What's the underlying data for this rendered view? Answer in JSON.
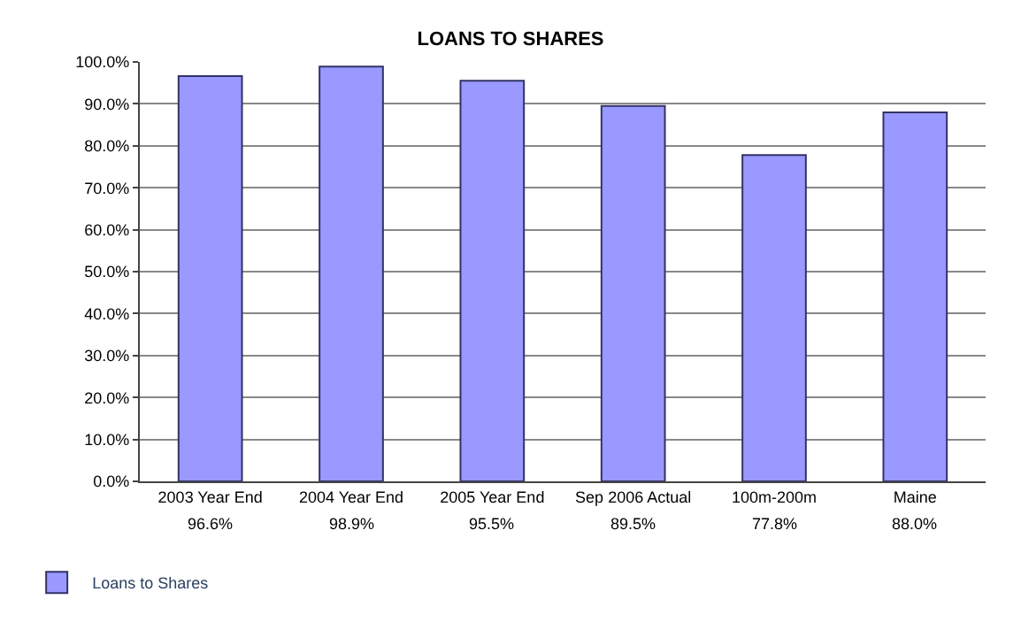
{
  "chart_data": {
    "type": "bar",
    "title": "LOANS TO SHARES",
    "categories": [
      "2003 Year End",
      "2004 Year End",
      "2005 Year End",
      "Sep 2006 Actual",
      "100m-200m",
      "Maine"
    ],
    "series": [
      {
        "name": "Loans to Shares",
        "color": "#9999ff",
        "values": [
          96.6,
          98.9,
          95.5,
          89.5,
          77.8,
          88.0
        ]
      }
    ],
    "ylim": [
      0,
      100
    ],
    "yticks": [
      {
        "value": 0,
        "label": "0.0%"
      },
      {
        "value": 10,
        "label": "10.0%"
      },
      {
        "value": 20,
        "label": "20.0%"
      },
      {
        "value": 30,
        "label": "30.0%"
      },
      {
        "value": 40,
        "label": "40.0%"
      },
      {
        "value": 50,
        "label": "50.0%"
      },
      {
        "value": 60,
        "label": "60.0%"
      },
      {
        "value": 70,
        "label": "70.0%"
      },
      {
        "value": 80,
        "label": "80.0%"
      },
      {
        "value": 90,
        "label": "90.0%"
      },
      {
        "value": 100,
        "label": "100.0%"
      }
    ],
    "value_labels": [
      "96.6%",
      "98.9%",
      "95.5%",
      "89.5%",
      "77.8%",
      "88.0%"
    ],
    "grid": "y",
    "legend": "bottom left"
  }
}
